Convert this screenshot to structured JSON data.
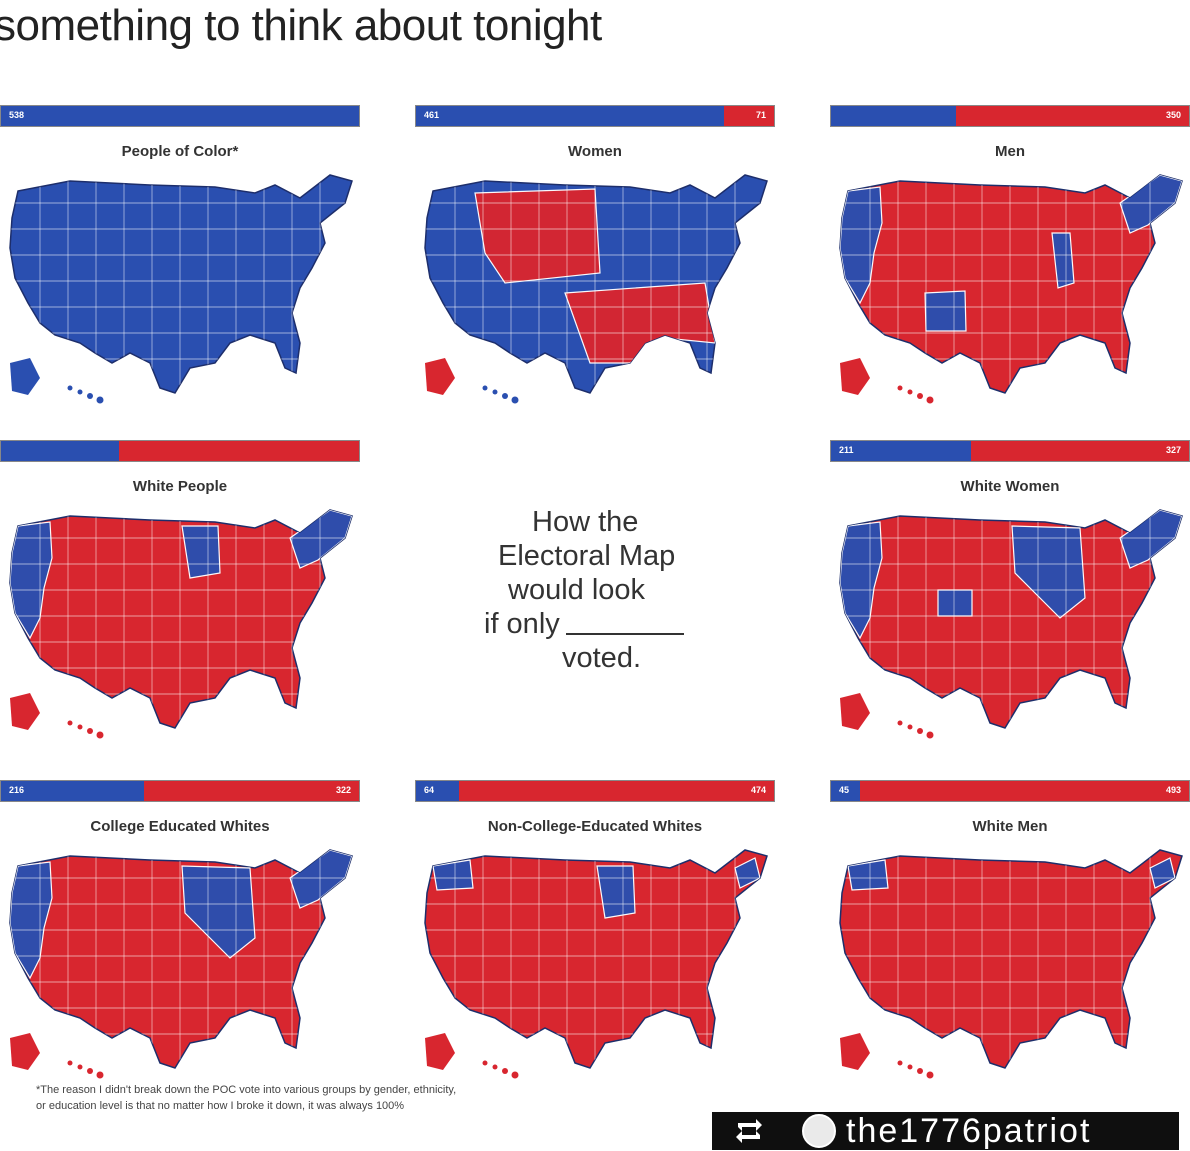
{
  "caption": "something to think about tonight",
  "colors": {
    "dem": "#2a4fb0",
    "rep": "#d8262f",
    "ocean": "#ffffff"
  },
  "panels": [
    {
      "title": "People of Color*",
      "dem_ev": "538",
      "rep_ev": "",
      "dem_share": 1.0,
      "fill": "dem",
      "accent_regions": []
    },
    {
      "title": "Women",
      "dem_ev": "461",
      "rep_ev": "71",
      "dem_share": 0.86,
      "fill": "mixed",
      "accent_regions": [
        "mountain-red",
        "south-red"
      ]
    },
    {
      "title": "Men",
      "dem_ev": "",
      "rep_ev": "350",
      "dem_share": 0.35,
      "fill": "rep",
      "accent_regions": [
        "west-coast-blue",
        "new-mexico-blue",
        "illinois-blue",
        "northeast-blue"
      ]
    },
    {
      "title": "White People",
      "dem_ev": "",
      "rep_ev": "",
      "dem_share": 0.33,
      "fill": "rep",
      "accent_regions": [
        "west-coast-blue",
        "minnesota-blue",
        "northeast-blue"
      ]
    },
    {
      "title": "White Women",
      "dem_ev": "211",
      "rep_ev": "327",
      "dem_share": 0.39,
      "fill": "rep",
      "accent_regions": [
        "west-coast-blue",
        "colorado-blue",
        "upper-midwest-blue",
        "northeast-blue"
      ]
    },
    {
      "title": "College Educated Whites",
      "dem_ev": "216",
      "rep_ev": "322",
      "dem_share": 0.4,
      "fill": "rep",
      "accent_regions": [
        "west-coast-blue",
        "upper-midwest-blue",
        "northeast-blue"
      ]
    },
    {
      "title": "Non-College-Educated Whites",
      "dem_ev": "64",
      "rep_ev": "474",
      "dem_share": 0.12,
      "fill": "rep",
      "accent_regions": [
        "washington-blue",
        "minnesota-blue",
        "northeast-small-blue"
      ]
    },
    {
      "title": "White Men",
      "dem_ev": "45",
      "rep_ev": "493",
      "dem_share": 0.08,
      "fill": "rep",
      "accent_regions": [
        "washington-blue",
        "northeast-small-blue"
      ]
    }
  ],
  "center_text": {
    "line1": "How the",
    "line2": "Electoral Map",
    "line3": "would look",
    "line4": "if only",
    "line5": "voted."
  },
  "footnote": {
    "line1": "*The reason I didn't break down the POC vote into various groups by gender, ethnicity,",
    "line2": "or education level is that no matter how I broke it down, it was always 100%"
  },
  "repost": {
    "handle": "the1776patriot"
  }
}
